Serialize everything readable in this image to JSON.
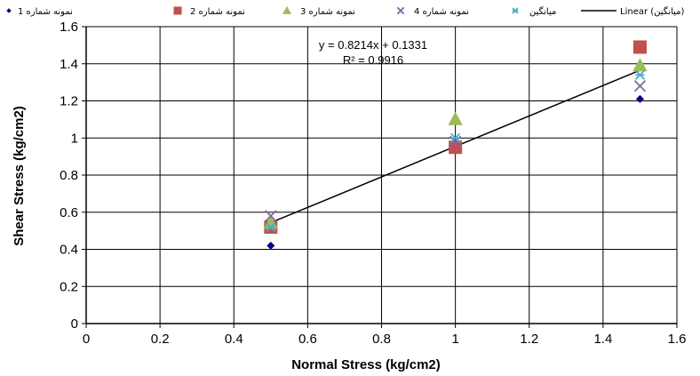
{
  "chart_data": {
    "type": "scatter",
    "xlabel": "Normal Stress (kg/cm2)",
    "ylabel": "Shear Stress (kg/cm2)",
    "xlim": [
      0,
      1.6
    ],
    "ylim": [
      0,
      1.6
    ],
    "xticks": [
      "0",
      "0.2",
      "0.4",
      "0.6",
      "0.8",
      "1",
      "1.2",
      "1.4",
      "1.6"
    ],
    "yticks": [
      "0",
      "0.2",
      "0.4",
      "0.6",
      "0.8",
      "1",
      "1.2",
      "1.4",
      "1.6"
    ],
    "grid": true,
    "legend_position": "top",
    "series": [
      {
        "name": "نمونه شماره 1",
        "marker": "diamond",
        "color": "#000080",
        "points": [
          [
            0.5,
            0.42
          ],
          [
            1.0,
            0.97
          ],
          [
            1.5,
            1.21
          ]
        ]
      },
      {
        "name": "نمونه شماره 2",
        "marker": "square",
        "color": "#C0504D",
        "points": [
          [
            0.5,
            0.52
          ],
          [
            1.0,
            0.95
          ],
          [
            1.5,
            1.49
          ]
        ]
      },
      {
        "name": "نمونه شماره 3",
        "marker": "triangle",
        "color": "#9BBB59",
        "points": [
          [
            0.5,
            0.54
          ],
          [
            1.0,
            1.1
          ],
          [
            1.5,
            1.39
          ]
        ]
      },
      {
        "name": "نمونه شماره 4",
        "marker": "x",
        "color": "#8064A2",
        "points": [
          [
            0.5,
            0.58
          ],
          [
            1.0,
            0.98
          ],
          [
            1.5,
            1.28
          ]
        ]
      },
      {
        "name": "میانگین",
        "marker": "star",
        "color": "#4BACC6",
        "points": [
          [
            0.5,
            0.52
          ],
          [
            1.0,
            1.0
          ],
          [
            1.5,
            1.34
          ]
        ]
      }
    ],
    "trendline": {
      "name": "Linear (میانگین)",
      "color": "#000000",
      "slope": 0.8214,
      "intercept": 0.1331,
      "x_range": [
        0.5,
        1.5
      ],
      "equation": "y = 0.8214x  + 0.1331",
      "r2": "R² = 0.9916"
    }
  }
}
